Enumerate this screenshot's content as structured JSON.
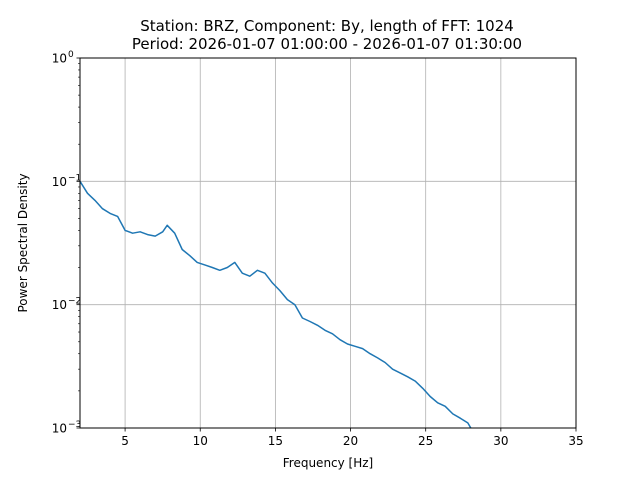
{
  "chart_data": {
    "type": "line",
    "title": "Station: BRZ, Component: By, length of FFT: 1024",
    "subtitle": "Period: 2026-01-07 01:00:00 - 2026-01-07 01:30:00",
    "xlabel": "Frequency [Hz]",
    "ylabel": "Power Spectral Density",
    "xlim": [
      2,
      35
    ],
    "ylim": [
      0.001,
      1
    ],
    "yscale": "log",
    "grid": true,
    "x_ticks": [
      5,
      10,
      15,
      20,
      25,
      30,
      35
    ],
    "y_ticks": [
      {
        "value": 1,
        "base": "10",
        "exp": "0"
      },
      {
        "value": 0.1,
        "base": "10",
        "exp": "−1"
      },
      {
        "value": 0.01,
        "base": "10",
        "exp": "−2"
      },
      {
        "value": 0.001,
        "base": "10",
        "exp": "−3"
      }
    ],
    "series": [
      {
        "color": "#1f77b4",
        "x": [
          2.0,
          2.5,
          3.0,
          3.5,
          4.0,
          4.5,
          5.0,
          5.5,
          6.0,
          6.5,
          7.0,
          7.5,
          7.8,
          8.3,
          8.8,
          9.3,
          9.8,
          10.3,
          10.8,
          11.3,
          11.8,
          12.3,
          12.8,
          13.3,
          13.8,
          14.3,
          14.8,
          15.3,
          15.8,
          16.3,
          16.8,
          17.3,
          17.8,
          18.3,
          18.8,
          19.3,
          19.8,
          20.3,
          20.8,
          21.3,
          21.8,
          22.3,
          22.8,
          23.3,
          23.8,
          24.3,
          24.8,
          25.3,
          25.8,
          26.3,
          26.8,
          27.3,
          27.8,
          28.0
        ],
        "y": [
          0.1,
          0.08,
          0.07,
          0.06,
          0.055,
          0.052,
          0.04,
          0.038,
          0.039,
          0.037,
          0.036,
          0.039,
          0.044,
          0.038,
          0.028,
          0.025,
          0.022,
          0.021,
          0.02,
          0.019,
          0.02,
          0.022,
          0.018,
          0.017,
          0.019,
          0.018,
          0.015,
          0.013,
          0.011,
          0.01,
          0.0078,
          0.0073,
          0.0068,
          0.0062,
          0.0058,
          0.0052,
          0.0048,
          0.0046,
          0.0044,
          0.004,
          0.0037,
          0.0034,
          0.003,
          0.0028,
          0.0026,
          0.0024,
          0.0021,
          0.0018,
          0.0016,
          0.0015,
          0.0013,
          0.0012,
          0.0011,
          0.001
        ]
      }
    ]
  }
}
